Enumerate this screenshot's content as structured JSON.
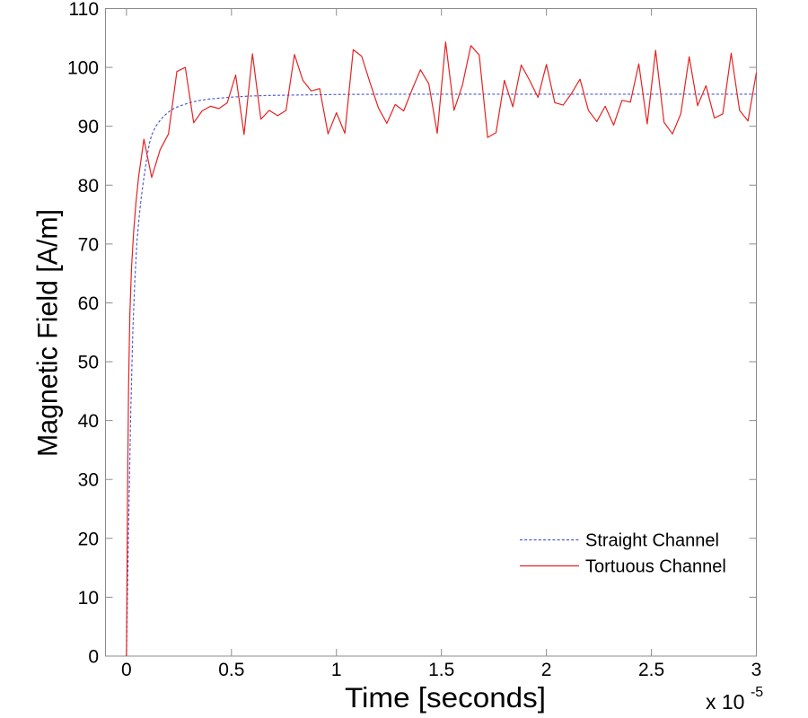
{
  "chart_data": {
    "type": "line",
    "title": "",
    "xlabel": "Time [seconds]",
    "ylabel": "Magnetic Field [A/m]",
    "x_offset_base": "x 10",
    "x_offset_exp": "-5",
    "xlim": [
      -0.1,
      3
    ],
    "ylim": [
      0,
      110
    ],
    "x_ticks": [
      0,
      0.5,
      1,
      1.5,
      2,
      2.5,
      3
    ],
    "x_tick_labels": [
      "0",
      "0.5",
      "1",
      "1.5",
      "2",
      "2.5",
      "3"
    ],
    "y_ticks": [
      0,
      10,
      20,
      30,
      40,
      50,
      60,
      70,
      80,
      90,
      100,
      110
    ],
    "y_tick_labels": [
      "0",
      "10",
      "20",
      "30",
      "40",
      "50",
      "60",
      "70",
      "80",
      "90",
      "100",
      "110"
    ],
    "grid": false,
    "box": true,
    "tick_direction": "in",
    "legend_position": "inside lower right",
    "legend_box": false,
    "axis_color": "#8c8c8c",
    "series": [
      {
        "name": "Straight Channel",
        "color": "#4a5ad4",
        "line_style": "dashed",
        "line_width": 1.15,
        "points": [
          [
            0,
            0
          ],
          [
            0.01,
            22
          ],
          [
            0.02,
            41
          ],
          [
            0.03,
            55
          ],
          [
            0.04,
            64
          ],
          [
            0.05,
            70.5
          ],
          [
            0.06,
            74.5
          ],
          [
            0.07,
            77.8
          ],
          [
            0.08,
            80.5
          ],
          [
            0.09,
            83.0
          ],
          [
            0.1,
            85.3
          ],
          [
            0.11,
            87.2
          ],
          [
            0.12,
            88.5
          ],
          [
            0.13,
            89.3
          ],
          [
            0.14,
            90.0
          ],
          [
            0.16,
            91.0
          ],
          [
            0.18,
            91.8
          ],
          [
            0.2,
            92.4
          ],
          [
            0.225,
            93.0
          ],
          [
            0.25,
            93.4
          ],
          [
            0.3,
            94.0
          ],
          [
            0.35,
            94.4
          ],
          [
            0.4,
            94.65
          ],
          [
            0.45,
            94.8
          ],
          [
            0.5,
            94.95
          ],
          [
            0.6,
            95.15
          ],
          [
            0.7,
            95.25
          ],
          [
            0.8,
            95.3
          ],
          [
            0.9,
            95.35
          ],
          [
            1.0,
            95.4
          ],
          [
            1.25,
            95.45
          ],
          [
            1.5,
            95.45
          ],
          [
            2.0,
            95.45
          ],
          [
            2.5,
            95.45
          ],
          [
            3.0,
            95.45
          ]
        ]
      },
      {
        "name": "Tortuous Channel",
        "color": "#e62222",
        "line_style": "solid",
        "line_width": 1.2,
        "points": [
          [
            0,
            0
          ],
          [
            0.005,
            28
          ],
          [
            0.01,
            46
          ],
          [
            0.016,
            58
          ],
          [
            0.024,
            66
          ],
          [
            0.034,
            72
          ],
          [
            0.045,
            77
          ],
          [
            0.058,
            81.5
          ],
          [
            0.07,
            84.5
          ],
          [
            0.083,
            87.8
          ],
          [
            0.12,
            81.3
          ],
          [
            0.16,
            86.0
          ],
          [
            0.2,
            88.7
          ],
          [
            0.24,
            99.3
          ],
          [
            0.28,
            100.0
          ],
          [
            0.32,
            90.6
          ],
          [
            0.36,
            92.6
          ],
          [
            0.4,
            93.4
          ],
          [
            0.44,
            93.0
          ],
          [
            0.48,
            94.0
          ],
          [
            0.52,
            98.7
          ],
          [
            0.56,
            88.6
          ],
          [
            0.6,
            102.3
          ],
          [
            0.64,
            91.2
          ],
          [
            0.68,
            92.7
          ],
          [
            0.72,
            91.8
          ],
          [
            0.76,
            92.7
          ],
          [
            0.8,
            102.2
          ],
          [
            0.84,
            97.8
          ],
          [
            0.88,
            96.0
          ],
          [
            0.92,
            96.4
          ],
          [
            0.96,
            88.7
          ],
          [
            1.0,
            92.3
          ],
          [
            1.04,
            88.8
          ],
          [
            1.08,
            103.0
          ],
          [
            1.12,
            101.9
          ],
          [
            1.16,
            97.4
          ],
          [
            1.2,
            93.1
          ],
          [
            1.24,
            90.5
          ],
          [
            1.28,
            93.7
          ],
          [
            1.32,
            92.6
          ],
          [
            1.36,
            96.2
          ],
          [
            1.4,
            99.6
          ],
          [
            1.44,
            97.2
          ],
          [
            1.48,
            88.8
          ],
          [
            1.52,
            104.3
          ],
          [
            1.56,
            92.7
          ],
          [
            1.6,
            97.0
          ],
          [
            1.64,
            103.7
          ],
          [
            1.68,
            102.1
          ],
          [
            1.72,
            88.1
          ],
          [
            1.76,
            88.9
          ],
          [
            1.8,
            97.8
          ],
          [
            1.84,
            93.3
          ],
          [
            1.88,
            100.4
          ],
          [
            1.92,
            97.8
          ],
          [
            1.96,
            94.9
          ],
          [
            2.0,
            100.5
          ],
          [
            2.04,
            94.0
          ],
          [
            2.08,
            93.6
          ],
          [
            2.12,
            95.6
          ],
          [
            2.16,
            98.0
          ],
          [
            2.2,
            92.7
          ],
          [
            2.24,
            90.8
          ],
          [
            2.28,
            93.4
          ],
          [
            2.32,
            90.2
          ],
          [
            2.36,
            94.4
          ],
          [
            2.4,
            94.1
          ],
          [
            2.44,
            100.6
          ],
          [
            2.48,
            90.4
          ],
          [
            2.52,
            102.9
          ],
          [
            2.56,
            90.7
          ],
          [
            2.6,
            88.7
          ],
          [
            2.64,
            92.1
          ],
          [
            2.68,
            101.8
          ],
          [
            2.72,
            93.5
          ],
          [
            2.76,
            96.9
          ],
          [
            2.8,
            91.4
          ],
          [
            2.84,
            92.1
          ],
          [
            2.88,
            102.4
          ],
          [
            2.92,
            92.7
          ],
          [
            2.96,
            90.9
          ],
          [
            3.0,
            99.1
          ]
        ]
      }
    ]
  }
}
